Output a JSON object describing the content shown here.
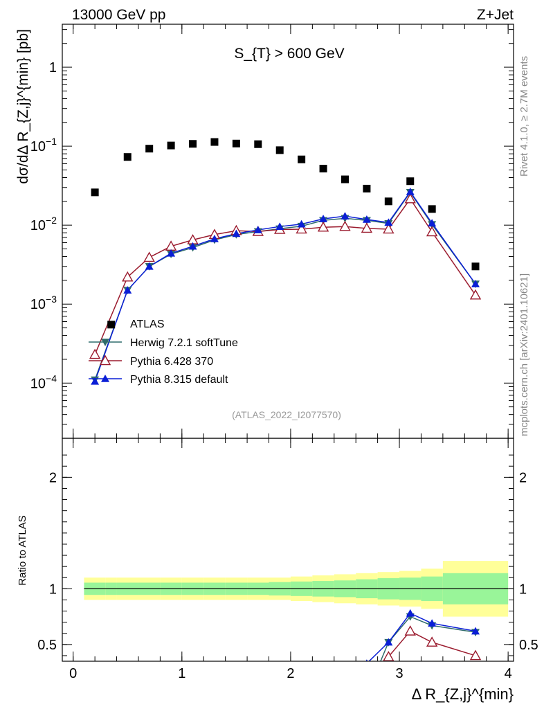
{
  "header": {
    "energy": "13000 GeV pp",
    "process": "Z+Jet",
    "cut": "S_{T} > 600 GeV",
    "analysis_id": "(ATLAS_2022_I2077570)",
    "side_rivet": "Rivet 4.1.0, ≥ 2.7M events",
    "side_site": "mcplots.cern.ch [arXiv:2401.10621]"
  },
  "chart_data": {
    "type": "scatter",
    "main": {
      "ylabel": "dσ/dΔ R_{Z,j}^{min} [pb]",
      "yscale": "log",
      "ylim": [
        2e-05,
        3.5
      ],
      "yticks": [
        {
          "value": 1,
          "label": "1"
        },
        {
          "value": 0.1,
          "label": "10^-1"
        },
        {
          "value": 0.01,
          "label": "10^-2"
        },
        {
          "value": 0.001,
          "label": "10^-3"
        },
        {
          "value": 0.0001,
          "label": "10^-4"
        }
      ]
    },
    "ratio": {
      "ylabel": "Ratio to ATLAS",
      "ylim": [
        0.35,
        2.35
      ],
      "yticks": [
        {
          "value": 0.5,
          "label": "0.5"
        },
        {
          "value": 1,
          "label": "1"
        },
        {
          "value": 2,
          "label": "2"
        }
      ]
    },
    "xlabel": "Δ R_{Z,j}^{min}",
    "xlim": [
      -0.1,
      4.05
    ],
    "xticks": [
      0,
      1,
      2,
      3,
      4
    ],
    "x": [
      0.2,
      0.35,
      0.5,
      0.7,
      0.9,
      1.1,
      1.3,
      1.5,
      1.7,
      1.9,
      2.1,
      2.3,
      2.5,
      2.7,
      2.9,
      3.1,
      3.3,
      3.7
    ],
    "bin_edges": [
      0.1,
      0.3,
      0.4,
      0.6,
      0.8,
      1.0,
      1.2,
      1.4,
      1.6,
      1.8,
      2.0,
      2.2,
      2.4,
      2.6,
      2.8,
      3.0,
      3.2,
      3.4,
      4.0
    ],
    "data": {
      "name": "ATLAS",
      "values": [
        0.026,
        0.00055,
        0.073,
        0.093,
        0.102,
        0.107,
        0.113,
        0.108,
        0.106,
        0.089,
        0.068,
        0.052,
        0.038,
        0.029,
        0.02,
        0.036,
        0.016,
        0.003
      ],
      "band_stat": [
        0.055,
        0.055,
        0.055,
        0.055,
        0.055,
        0.055,
        0.055,
        0.055,
        0.055,
        0.06,
        0.065,
        0.07,
        0.075,
        0.085,
        0.095,
        0.1,
        0.11,
        0.14
      ],
      "band_total": [
        0.1,
        0.1,
        0.1,
        0.1,
        0.1,
        0.1,
        0.1,
        0.1,
        0.1,
        0.1,
        0.11,
        0.12,
        0.13,
        0.14,
        0.15,
        0.16,
        0.18,
        0.25
      ]
    },
    "series": [
      {
        "name": "Herwig 7.2.1 softTune",
        "color": "#2e6b6b",
        "marker": "triangle-down",
        "x": [
          0.2,
          0.5,
          0.7,
          0.9,
          1.1,
          1.3,
          1.5,
          1.7,
          1.9,
          2.1,
          2.3,
          2.5,
          2.7,
          2.9,
          3.1,
          3.3,
          3.7
        ],
        "values": [
          0.00011,
          0.0015,
          0.003,
          0.0043,
          0.0052,
          0.0065,
          0.0076,
          0.0083,
          0.009,
          0.0097,
          0.0115,
          0.0122,
          0.0115,
          0.0105,
          0.026,
          0.0102,
          0.0018
        ],
        "ratio_x": [
          2.9,
          3.1,
          3.3,
          3.7
        ],
        "ratio": [
          0.52,
          0.75,
          0.67,
          0.61
        ]
      },
      {
        "name": "Pythia 6.428 370",
        "color": "#9b1b2e",
        "marker": "triangle-up-open",
        "x": [
          0.2,
          0.5,
          0.7,
          0.9,
          1.1,
          1.3,
          1.5,
          1.7,
          1.9,
          2.1,
          2.3,
          2.5,
          2.7,
          2.9,
          3.1,
          3.3,
          3.7
        ],
        "values": [
          0.00023,
          0.0022,
          0.0039,
          0.0054,
          0.0065,
          0.0076,
          0.0085,
          0.0083,
          0.0088,
          0.0089,
          0.0094,
          0.0096,
          0.0091,
          0.0089,
          0.0215,
          0.0082,
          0.0013
        ],
        "ratio_x": [
          2.9,
          3.1,
          3.3,
          3.7
        ],
        "ratio": [
          0.39,
          0.62,
          0.52,
          0.4
        ]
      },
      {
        "name": "Pythia 8.315 default",
        "color": "#0a1ed6",
        "marker": "triangle-up",
        "x": [
          0.2,
          0.5,
          0.7,
          0.9,
          1.1,
          1.3,
          1.5,
          1.7,
          1.9,
          2.1,
          2.3,
          2.5,
          2.7,
          2.9,
          3.1,
          3.3,
          3.7
        ],
        "values": [
          0.000105,
          0.0015,
          0.003,
          0.0044,
          0.0054,
          0.0067,
          0.0078,
          0.0087,
          0.0096,
          0.0103,
          0.012,
          0.013,
          0.0118,
          0.0108,
          0.0265,
          0.0106,
          0.0018
        ],
        "ratio_x": [
          2.7,
          2.9,
          3.1,
          3.3,
          3.7
        ],
        "ratio": [
          0.33,
          0.52,
          0.78,
          0.69,
          0.62
        ]
      }
    ],
    "legend": {
      "placement": "lower-left",
      "title": "ATLAS"
    }
  }
}
